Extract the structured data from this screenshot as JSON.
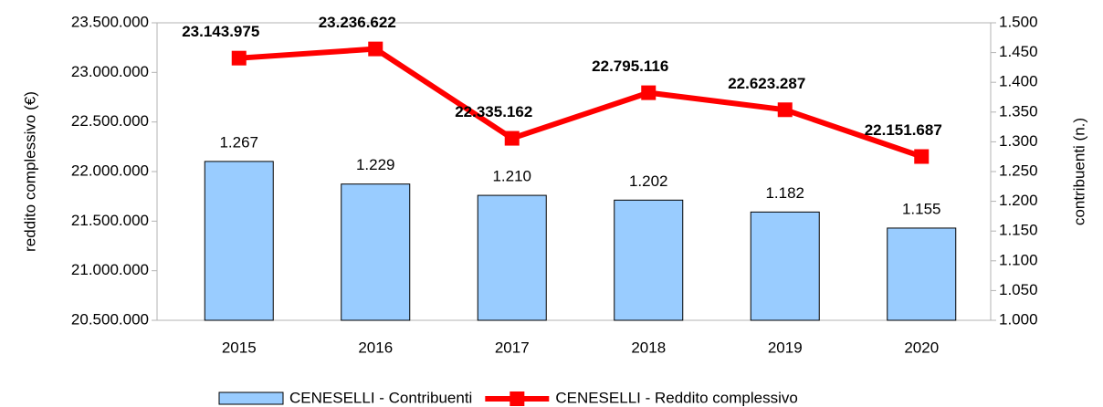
{
  "chart_data": {
    "type": "combo",
    "categories": [
      "2015",
      "2016",
      "2017",
      "2018",
      "2019",
      "2020"
    ],
    "y_label": "reddito complessivo (€)",
    "y2_label": "contribuenti (n.)",
    "ylim": [
      20500000,
      23500000
    ],
    "yticks": [
      {
        "value": 20500000,
        "label": "20.500.000"
      },
      {
        "value": 21000000,
        "label": "21.000.000"
      },
      {
        "value": 21500000,
        "label": "21.500.000"
      },
      {
        "value": 22000000,
        "label": "22.000.000"
      },
      {
        "value": 22500000,
        "label": "22.500.000"
      },
      {
        "value": 23000000,
        "label": "23.000.000"
      },
      {
        "value": 23500000,
        "label": "23.500.000"
      }
    ],
    "y2lim": [
      1000,
      1500
    ],
    "y2ticks": [
      {
        "value": 1000,
        "label": "1.000"
      },
      {
        "value": 1050,
        "label": "1.050"
      },
      {
        "value": 1100,
        "label": "1.100"
      },
      {
        "value": 1150,
        "label": "1.150"
      },
      {
        "value": 1200,
        "label": "1.200"
      },
      {
        "value": 1250,
        "label": "1.250"
      },
      {
        "value": 1300,
        "label": "1.300"
      },
      {
        "value": 1350,
        "label": "1.350"
      },
      {
        "value": 1400,
        "label": "1.400"
      },
      {
        "value": 1450,
        "label": "1.450"
      },
      {
        "value": 1500,
        "label": "1.500"
      }
    ],
    "grid": false,
    "legend": "bottom",
    "series": [
      {
        "name": "CENESELLI - Contribuenti",
        "type": "bar",
        "axis": "y2",
        "color": "#99ccff",
        "values": [
          1267,
          1229,
          1210,
          1202,
          1182,
          1155
        ],
        "value_labels": [
          "1.267",
          "1.229",
          "1.210",
          "1.202",
          "1.182",
          "1.155"
        ]
      },
      {
        "name": "CENESELLI - Reddito complessivo",
        "type": "line",
        "axis": "y",
        "color": "#ff0000",
        "values": [
          23143975,
          23236622,
          22335162,
          22795116,
          22623287,
          22151687
        ],
        "value_labels": [
          "23.143.975",
          "23.236.622",
          "22.335.162",
          "22.795.116",
          "22.623.287",
          "22.151.687"
        ]
      }
    ]
  }
}
